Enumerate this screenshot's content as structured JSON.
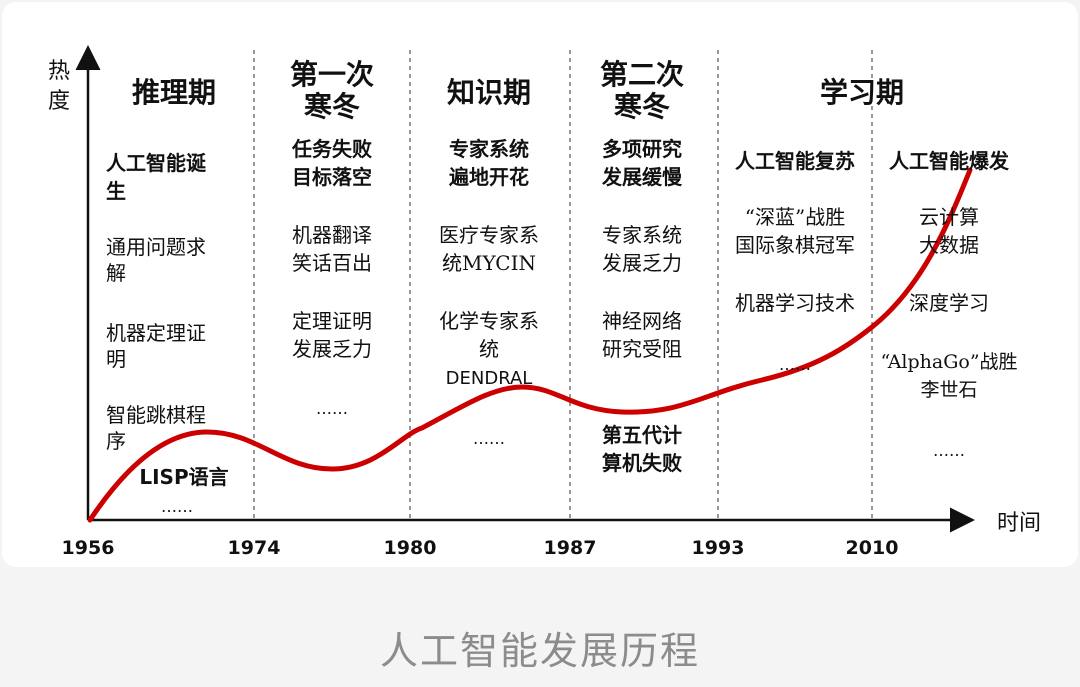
{
  "axes": {
    "y_label": "热\n度",
    "x_label": "时间"
  },
  "x_ticks": [
    "1956",
    "1974",
    "1980",
    "1987",
    "1993",
    "2010"
  ],
  "periods": [
    {
      "key": "reasoning",
      "title": "推理期",
      "items": [
        "人工智能诞\n生",
        "通用问题求\n解",
        "机器定理证\n明",
        "智能跳棋程\n序",
        "LISP语言",
        "……"
      ]
    },
    {
      "key": "winter1",
      "title": "第一次\n寒冬",
      "items": [
        "任务失败\n目标落空",
        "机器翻译\n笑话百出",
        "定理证明\n发展乏力",
        "……"
      ]
    },
    {
      "key": "knowledge",
      "title": "知识期",
      "items": [
        "专家系统\n遍地开花",
        "医疗专家系\n统MYCIN",
        "化学专家系\n统\nDENDRAL",
        "……"
      ]
    },
    {
      "key": "winter2",
      "title": "第二次\n寒冬",
      "items": [
        "多项研究\n发展缓慢",
        "专家系统\n发展乏力",
        "神经网络\n研究受阻",
        "第五代计\n算机失败"
      ]
    },
    {
      "key": "learning",
      "title": "学习期",
      "sub_a": {
        "title": "人工智能复苏",
        "items": [
          "“深蓝”战胜\n国际象棋冠军",
          "机器学习技术",
          "……"
        ]
      },
      "sub_b": {
        "title": "人工智能爆发",
        "items": [
          "云计算\n大数据",
          "深度学习",
          "“AlphaGo”战胜\n李世石",
          "……"
        ]
      }
    }
  ],
  "colors": {
    "curve": "#cc0000",
    "axis": "#111111",
    "divider": "#555555",
    "caption": "#8c8c8c"
  },
  "caption": "人工智能发展历程"
}
